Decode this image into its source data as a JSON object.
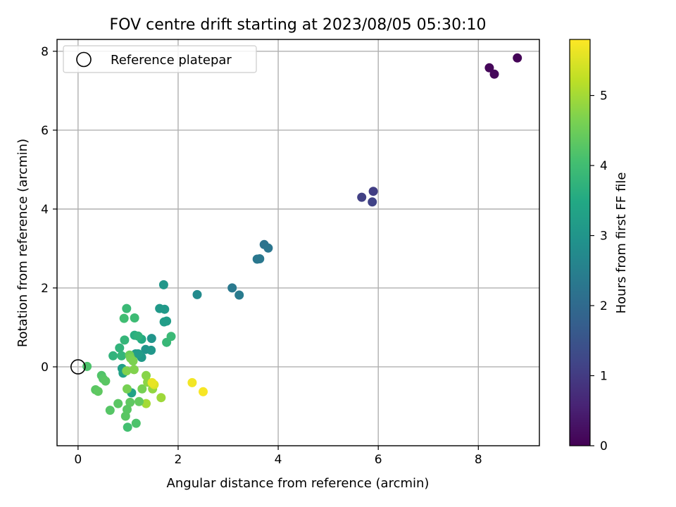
{
  "chart_data": {
    "type": "scatter",
    "title": "FOV centre drift starting at 2023/08/05 05:30:10",
    "xlabel": "Angular distance from reference (arcmin)",
    "ylabel": "Rotation from reference (arcmin)",
    "xlim": [
      -0.42,
      9.22
    ],
    "ylim": [
      -2.0,
      8.3
    ],
    "xticks": [
      0,
      2,
      4,
      6,
      8
    ],
    "yticks": [
      0,
      2,
      4,
      6,
      8
    ],
    "grid": true,
    "legend": {
      "position": "top-left",
      "entries": [
        {
          "label": "Reference platepar",
          "marker": "open-circle"
        }
      ]
    },
    "reference_point": {
      "x": 0,
      "y": 0
    },
    "colorbar": {
      "label": "Hours from first FF file",
      "colormap": "viridis",
      "range": [
        0,
        5.8
      ],
      "ticks": [
        0,
        1,
        2,
        3,
        4,
        5
      ]
    },
    "points": [
      {
        "x": 8.78,
        "y": 7.83,
        "c": 0.05
      },
      {
        "x": 8.22,
        "y": 7.58,
        "c": 0.1
      },
      {
        "x": 8.32,
        "y": 7.42,
        "c": 0.1
      },
      {
        "x": 5.9,
        "y": 4.45,
        "c": 1.05
      },
      {
        "x": 5.67,
        "y": 4.3,
        "c": 1.1
      },
      {
        "x": 5.88,
        "y": 4.18,
        "c": 1.15
      },
      {
        "x": 3.72,
        "y": 3.1,
        "c": 2.2
      },
      {
        "x": 3.8,
        "y": 3.01,
        "c": 2.25
      },
      {
        "x": 3.58,
        "y": 2.73,
        "c": 2.3
      },
      {
        "x": 3.63,
        "y": 2.74,
        "c": 2.3
      },
      {
        "x": 3.08,
        "y": 2.0,
        "c": 2.35
      },
      {
        "x": 3.22,
        "y": 1.82,
        "c": 2.4
      },
      {
        "x": 2.38,
        "y": 1.83,
        "c": 2.75
      },
      {
        "x": 1.71,
        "y": 2.08,
        "c": 3.05
      },
      {
        "x": 1.63,
        "y": 1.48,
        "c": 3.1
      },
      {
        "x": 1.73,
        "y": 1.46,
        "c": 3.1
      },
      {
        "x": 1.72,
        "y": 1.14,
        "c": 3.2
      },
      {
        "x": 1.77,
        "y": 1.16,
        "c": 3.2
      },
      {
        "x": 1.47,
        "y": 0.72,
        "c": 3.0
      },
      {
        "x": 1.35,
        "y": 0.44,
        "c": 3.0
      },
      {
        "x": 1.46,
        "y": 0.42,
        "c": 3.05
      },
      {
        "x": 1.27,
        "y": 0.24,
        "c": 3.1
      },
      {
        "x": 1.15,
        "y": 0.33,
        "c": 3.15
      },
      {
        "x": 1.2,
        "y": 0.33,
        "c": 3.2
      },
      {
        "x": 0.88,
        "y": -0.04,
        "c": 3.25
      },
      {
        "x": 0.9,
        "y": -0.16,
        "c": 3.3
      },
      {
        "x": 1.07,
        "y": -0.66,
        "c": 3.35
      },
      {
        "x": 1.77,
        "y": 0.62,
        "c": 3.85
      },
      {
        "x": 1.86,
        "y": 0.77,
        "c": 3.9
      },
      {
        "x": 1.27,
        "y": 0.7,
        "c": 3.5
      },
      {
        "x": 1.13,
        "y": 0.8,
        "c": 3.6
      },
      {
        "x": 1.2,
        "y": 0.78,
        "c": 3.7
      },
      {
        "x": 0.97,
        "y": 1.48,
        "c": 3.9
      },
      {
        "x": 1.13,
        "y": 1.24,
        "c": 3.95
      },
      {
        "x": 0.92,
        "y": 1.23,
        "c": 4.0
      },
      {
        "x": 0.93,
        "y": 0.68,
        "c": 3.8
      },
      {
        "x": 0.83,
        "y": 0.48,
        "c": 3.75
      },
      {
        "x": 0.7,
        "y": 0.28,
        "c": 3.75
      },
      {
        "x": 0.87,
        "y": 0.28,
        "c": 3.8
      },
      {
        "x": 1.03,
        "y": 0.3,
        "c": 4.5
      },
      {
        "x": 1.05,
        "y": 0.22,
        "c": 4.6
      },
      {
        "x": 1.1,
        "y": 0.15,
        "c": 4.65
      },
      {
        "x": 1.12,
        "y": -0.07,
        "c": 4.7
      },
      {
        "x": 0.97,
        "y": -0.1,
        "c": 4.7
      },
      {
        "x": 0.18,
        "y": 0.01,
        "c": 4.15
      },
      {
        "x": 0.47,
        "y": -0.22,
        "c": 4.2
      },
      {
        "x": 0.5,
        "y": -0.3,
        "c": 4.25
      },
      {
        "x": 0.55,
        "y": -0.36,
        "c": 4.3
      },
      {
        "x": 0.35,
        "y": -0.58,
        "c": 4.3
      },
      {
        "x": 0.4,
        "y": -0.62,
        "c": 4.35
      },
      {
        "x": 0.98,
        "y": -0.56,
        "c": 4.6
      },
      {
        "x": 1.28,
        "y": -0.56,
        "c": 4.6
      },
      {
        "x": 1.36,
        "y": -0.22,
        "c": 4.75
      },
      {
        "x": 1.39,
        "y": -0.39,
        "c": 4.8
      },
      {
        "x": 1.49,
        "y": -0.56,
        "c": 4.85
      },
      {
        "x": 1.52,
        "y": -0.45,
        "c": 5.5
      },
      {
        "x": 1.48,
        "y": -0.4,
        "c": 5.6
      },
      {
        "x": 1.66,
        "y": -0.78,
        "c": 4.95
      },
      {
        "x": 1.36,
        "y": -0.93,
        "c": 5.0
      },
      {
        "x": 1.22,
        "y": -0.88,
        "c": 4.4
      },
      {
        "x": 1.04,
        "y": -0.9,
        "c": 4.35
      },
      {
        "x": 0.8,
        "y": -0.93,
        "c": 4.3
      },
      {
        "x": 0.98,
        "y": -1.08,
        "c": 4.3
      },
      {
        "x": 0.95,
        "y": -1.25,
        "c": 4.3
      },
      {
        "x": 0.64,
        "y": -1.1,
        "c": 4.25
      },
      {
        "x": 0.99,
        "y": -1.53,
        "c": 4.05
      },
      {
        "x": 1.16,
        "y": -1.43,
        "c": 4.15
      },
      {
        "x": 2.28,
        "y": -0.4,
        "c": 5.7
      },
      {
        "x": 2.5,
        "y": -0.63,
        "c": 5.75
      }
    ]
  }
}
